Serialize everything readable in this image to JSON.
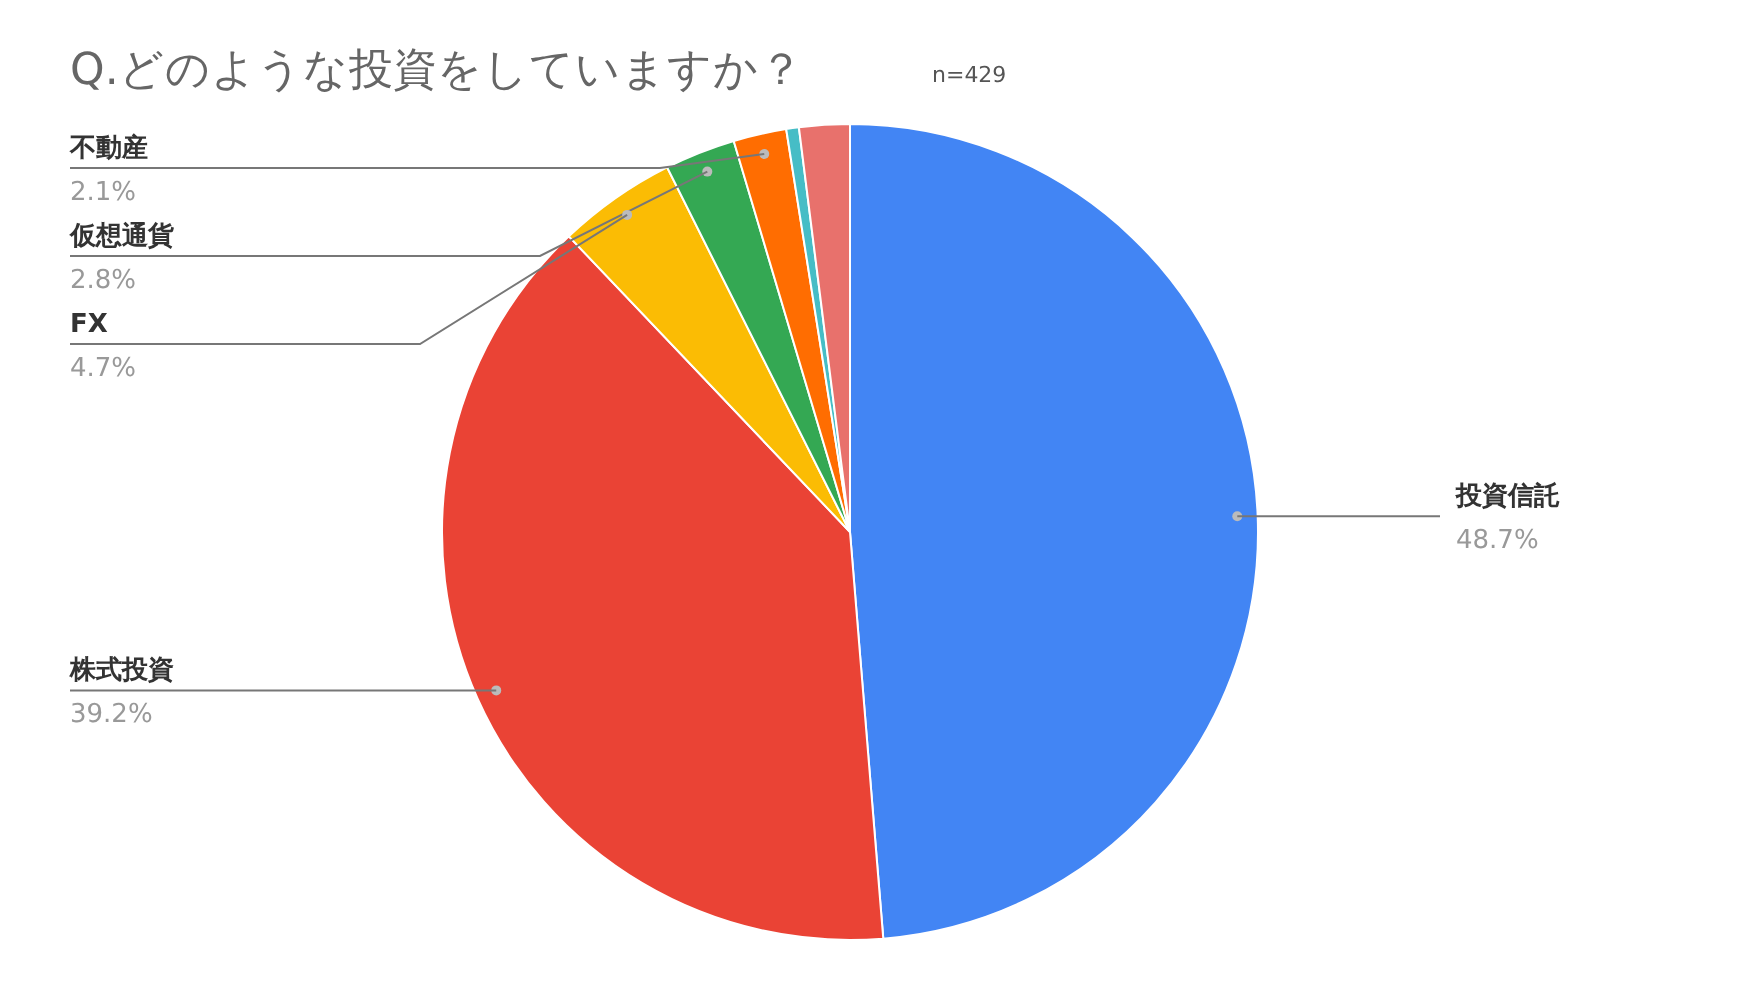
{
  "chart_data": {
    "type": "pie",
    "title": "Q.どのような投資をしていますか？",
    "subtitle": "n=429",
    "categories": [
      "投資信託",
      "株式投資",
      "FX",
      "仮想通貨",
      "不動産",
      null,
      null
    ],
    "values": [
      48.7,
      39.2,
      4.7,
      2.8,
      2.1,
      0.5,
      2.0
    ],
    "colors": [
      "#4285f4",
      "#ea4335",
      "#fbbc04",
      "#34a853",
      "#ff6d01",
      "#46bdc6",
      "#e8716c"
    ],
    "value_labels": [
      "48.7%",
      "39.2%",
      "4.7%",
      "2.8%",
      "2.1%",
      null,
      null
    ]
  }
}
